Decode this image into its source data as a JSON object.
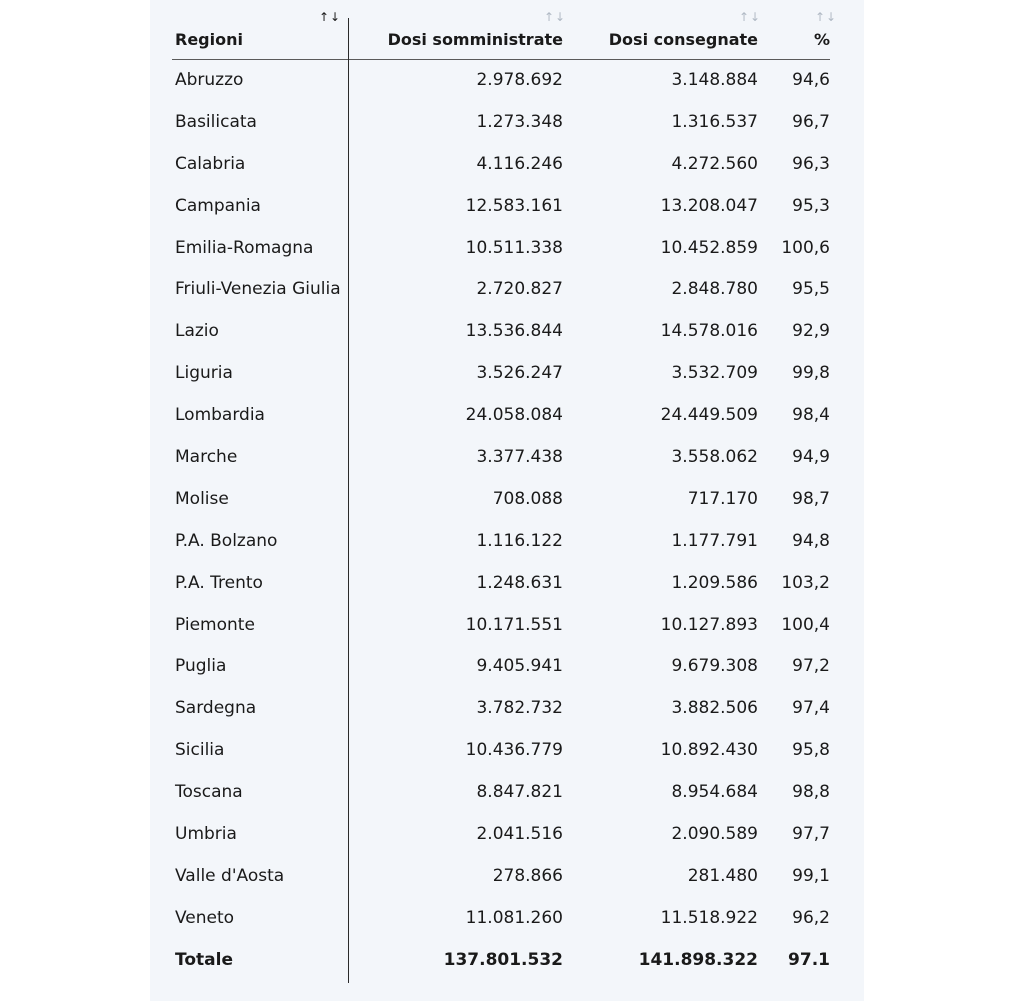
{
  "header": {
    "region": "Regioni",
    "administered": "Dosi somministrate",
    "delivered": "Dosi consegnate",
    "percent": "%",
    "sort_icon": "↑↓"
  },
  "rows": [
    {
      "region": "Abruzzo",
      "administered": "2.978.692",
      "delivered": "3.148.884",
      "percent": "94,6"
    },
    {
      "region": "Basilicata",
      "administered": "1.273.348",
      "delivered": "1.316.537",
      "percent": "96,7"
    },
    {
      "region": "Calabria",
      "administered": "4.116.246",
      "delivered": "4.272.560",
      "percent": "96,3"
    },
    {
      "region": "Campania",
      "administered": "12.583.161",
      "delivered": "13.208.047",
      "percent": "95,3"
    },
    {
      "region": "Emilia-Romagna",
      "administered": "10.511.338",
      "delivered": "10.452.859",
      "percent": "100,6"
    },
    {
      "region": "Friuli-Venezia Giulia",
      "administered": "2.720.827",
      "delivered": "2.848.780",
      "percent": "95,5"
    },
    {
      "region": "Lazio",
      "administered": "13.536.844",
      "delivered": "14.578.016",
      "percent": "92,9"
    },
    {
      "region": "Liguria",
      "administered": "3.526.247",
      "delivered": "3.532.709",
      "percent": "99,8"
    },
    {
      "region": "Lombardia",
      "administered": "24.058.084",
      "delivered": "24.449.509",
      "percent": "98,4"
    },
    {
      "region": "Marche",
      "administered": "3.377.438",
      "delivered": "3.558.062",
      "percent": "94,9"
    },
    {
      "region": "Molise",
      "administered": "708.088",
      "delivered": "717.170",
      "percent": "98,7"
    },
    {
      "region": "P.A. Bolzano",
      "administered": "1.116.122",
      "delivered": "1.177.791",
      "percent": "94,8"
    },
    {
      "region": "P.A. Trento",
      "administered": "1.248.631",
      "delivered": "1.209.586",
      "percent": "103,2"
    },
    {
      "region": "Piemonte",
      "administered": "10.171.551",
      "delivered": "10.127.893",
      "percent": "100,4"
    },
    {
      "region": "Puglia",
      "administered": "9.405.941",
      "delivered": "9.679.308",
      "percent": "97,2"
    },
    {
      "region": "Sardegna",
      "administered": "3.782.732",
      "delivered": "3.882.506",
      "percent": "97,4"
    },
    {
      "region": "Sicilia",
      "administered": "10.436.779",
      "delivered": "10.892.430",
      "percent": "95,8"
    },
    {
      "region": "Toscana",
      "administered": "8.847.821",
      "delivered": "8.954.684",
      "percent": "98,8"
    },
    {
      "region": "Umbria",
      "administered": "2.041.516",
      "delivered": "2.090.589",
      "percent": "97,7"
    },
    {
      "region": "Valle d'Aosta",
      "administered": "278.866",
      "delivered": "281.480",
      "percent": "99,1"
    },
    {
      "region": "Veneto",
      "administered": "11.081.260",
      "delivered": "11.518.922",
      "percent": "96,2"
    }
  ],
  "total": {
    "region": "Totale",
    "administered": "137.801.532",
    "delivered": "141.898.322",
    "percent": "97.1"
  }
}
